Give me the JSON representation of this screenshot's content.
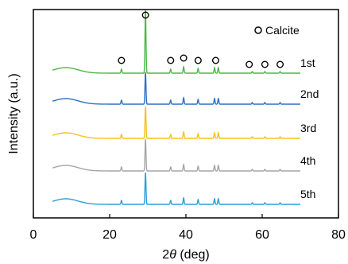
{
  "chart_data": {
    "type": "line",
    "xlabel_parts": {
      "symbol": "2",
      "italic": "θ",
      "unit": " (deg)"
    },
    "ylabel": "Intensity (a.u.)",
    "xlim": [
      0,
      80
    ],
    "xticks": [
      0,
      20,
      40,
      60,
      80
    ],
    "y_ticks_shown": false,
    "grid": false,
    "legend": {
      "placement": "top-right",
      "marker": "open-circle",
      "label": "Calcite"
    },
    "peak_positions_2theta": [
      23.1,
      29.4,
      36.0,
      39.4,
      43.2,
      47.5,
      48.5,
      57.4,
      60.7,
      64.7
    ],
    "marked_peaks_2theta": [
      23.1,
      29.4,
      36.0,
      39.4,
      43.2,
      47.8,
      56.6,
      60.7,
      64.7
    ],
    "x_range_data": [
      5,
      70
    ],
    "series": [
      {
        "name": "1st",
        "color": "#4cb848"
      },
      {
        "name": "2nd",
        "color": "#2f6fc4"
      },
      {
        "name": "3rd",
        "color": "#f6c21b"
      },
      {
        "name": "4th",
        "color": "#a6a6a6"
      },
      {
        "name": "5th",
        "color": "#2a9fd8"
      }
    ]
  }
}
